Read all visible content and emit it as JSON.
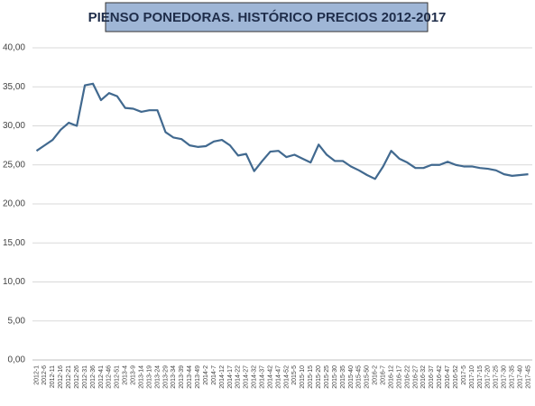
{
  "chart_data": {
    "type": "line",
    "title": "PIENSO PONEDORAS. HISTÓRICO PRECIOS 2012-2017",
    "categories": [
      "2012-1",
      "2012-6",
      "2012-11",
      "2012-16",
      "2012-21",
      "2012-26",
      "2012-31",
      "2012-36",
      "2012-41",
      "2012-46",
      "2012-51",
      "2013-4",
      "2013-9",
      "2013-14",
      "2013-19",
      "2013-24",
      "2013-29",
      "2013-34",
      "2013-39",
      "2013-44",
      "2013-49",
      "2014-2",
      "2014-7",
      "2014-12",
      "2014-17",
      "2014-22",
      "2014-27",
      "2014-32",
      "2014-37",
      "2014-42",
      "2014-47",
      "2014-52",
      "2015-5",
      "2015-10",
      "2015-15",
      "2015-20",
      "2015-25",
      "2015-30",
      "2015-35",
      "2015-40",
      "2015-45",
      "2015-50",
      "2016-2",
      "2016-7",
      "2016-12",
      "2016-17",
      "2016-22",
      "2016-27",
      "2016-32",
      "2016-37",
      "2016-42",
      "2016-47",
      "2016-52",
      "2017-5",
      "2017-10",
      "2017-15",
      "2017-20",
      "2017-25",
      "2017-30",
      "2017-35",
      "2017-40",
      "2017-45"
    ],
    "values": [
      26.8,
      27.5,
      28.2,
      29.5,
      30.4,
      30.0,
      35.2,
      35.4,
      33.3,
      34.2,
      33.8,
      32.3,
      32.2,
      31.8,
      32.0,
      32.0,
      29.2,
      28.5,
      28.3,
      27.5,
      27.3,
      27.4,
      28.0,
      28.2,
      27.5,
      26.2,
      26.4,
      24.2,
      25.5,
      26.7,
      26.8,
      26.0,
      26.3,
      25.8,
      25.3,
      27.6,
      26.3,
      25.5,
      25.5,
      24.8,
      24.3,
      23.7,
      23.2,
      24.8,
      26.8,
      25.8,
      25.3,
      24.6,
      24.6,
      25.0,
      25.0,
      25.4,
      25.0,
      24.8,
      24.8,
      24.6,
      24.5,
      24.3,
      23.8,
      23.6,
      23.7,
      23.8
    ],
    "color": "#41698f",
    "ylim": [
      0,
      40
    ],
    "yticks": [
      {
        "value": 0,
        "label": "0,00"
      },
      {
        "value": 5,
        "label": "5,00"
      },
      {
        "value": 10,
        "label": "10,00"
      },
      {
        "value": 15,
        "label": "15,00"
      },
      {
        "value": 20,
        "label": "20,00"
      },
      {
        "value": 25,
        "label": "25,00"
      },
      {
        "value": 30,
        "label": "30,00"
      },
      {
        "value": 35,
        "label": "35,00"
      },
      {
        "value": 40,
        "label": "40,00"
      }
    ],
    "grid": true
  }
}
